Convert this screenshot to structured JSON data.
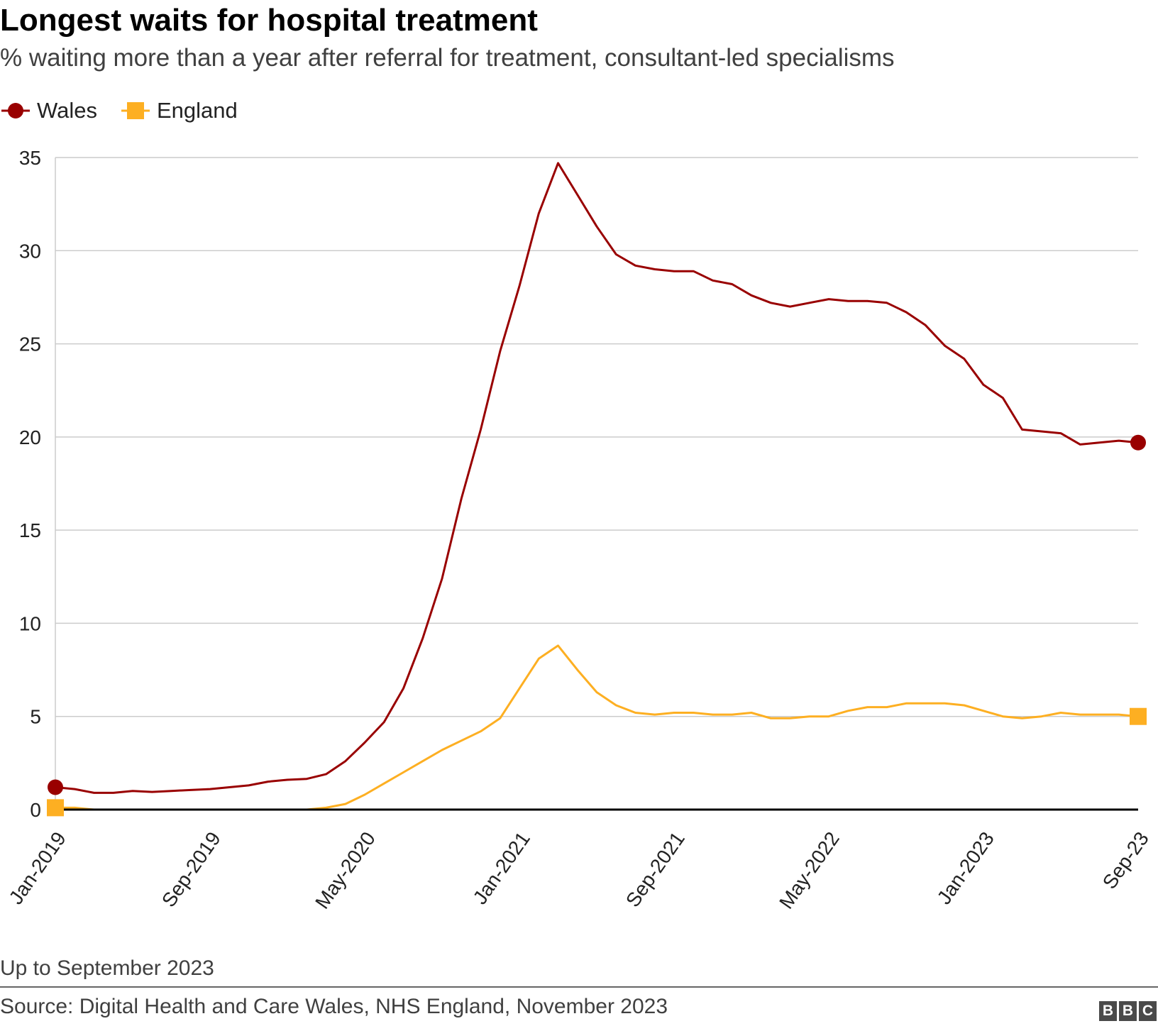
{
  "header": {
    "title": "Longest waits for hospital treatment",
    "subtitle": "% waiting more than a year after referral for treatment, consultant-led specialisms"
  },
  "legend": [
    {
      "label": "Wales",
      "color": "#990000",
      "marker": "circle"
    },
    {
      "label": "England",
      "color": "#fdaf22",
      "marker": "square"
    }
  ],
  "footer": {
    "note": "Up to September 2023",
    "source": "Source: Digital Health and Care Wales, NHS England, November 2023",
    "logo_letters": [
      "B",
      "B",
      "C"
    ]
  },
  "colors": {
    "wales": "#990000",
    "england": "#fdaf22",
    "gridline": "#cccccc",
    "baseline": "#000000",
    "text": "#222222"
  },
  "chart_data": {
    "type": "line",
    "title": "Longest waits for hospital treatment",
    "subtitle": "% waiting more than a year after referral for treatment, consultant-led specialisms",
    "xlabel": "",
    "ylabel": "",
    "ylim": [
      0,
      35
    ],
    "y_ticks": [
      0,
      5,
      10,
      15,
      20,
      25,
      30,
      35
    ],
    "grid": true,
    "legend_position": "top-left",
    "x_tick_labels": [
      {
        "label": "Jan-2019",
        "index": 0
      },
      {
        "label": "Sep-2019",
        "index": 8
      },
      {
        "label": "May-2020",
        "index": 16
      },
      {
        "label": "Jan-2021",
        "index": 24
      },
      {
        "label": "Sep-2021",
        "index": 32
      },
      {
        "label": "May-2022",
        "index": 40
      },
      {
        "label": "Jan-2023",
        "index": 48
      },
      {
        "label": "Sep-23",
        "index": 56
      }
    ],
    "x": [
      "Jan-2019",
      "Feb-2019",
      "Mar-2019",
      "Apr-2019",
      "May-2019",
      "Jun-2019",
      "Jul-2019",
      "Aug-2019",
      "Sep-2019",
      "Oct-2019",
      "Nov-2019",
      "Dec-2019",
      "Jan-2020",
      "Feb-2020",
      "Mar-2020",
      "Apr-2020",
      "May-2020",
      "Jun-2020",
      "Jul-2020",
      "Aug-2020",
      "Sep-2020",
      "Oct-2020",
      "Nov-2020",
      "Dec-2020",
      "Jan-2021",
      "Feb-2021",
      "Mar-2021",
      "Apr-2021",
      "May-2021",
      "Jun-2021",
      "Jul-2021",
      "Aug-2021",
      "Sep-2021",
      "Oct-2021",
      "Nov-2021",
      "Dec-2021",
      "Jan-2022",
      "Feb-2022",
      "Mar-2022",
      "Apr-2022",
      "May-2022",
      "Jun-2022",
      "Jul-2022",
      "Aug-2022",
      "Sep-2022",
      "Oct-2022",
      "Nov-2022",
      "Dec-2022",
      "Jan-2023",
      "Feb-2023",
      "Mar-2023",
      "Apr-2023",
      "May-2023",
      "Jun-2023",
      "Jul-2023",
      "Aug-2023",
      "Sep-2023"
    ],
    "series": [
      {
        "name": "Wales",
        "end_markers": "circle",
        "values": [
          1.2,
          1.1,
          0.9,
          0.9,
          1.0,
          0.95,
          1.0,
          1.05,
          1.1,
          1.2,
          1.3,
          1.5,
          1.6,
          1.65,
          1.9,
          2.6,
          3.6,
          4.7,
          6.5,
          9.2,
          12.4,
          16.7,
          20.4,
          24.6,
          28.1,
          32.0,
          34.7,
          33.0,
          31.3,
          29.8,
          29.2,
          29.0,
          28.9,
          28.9,
          28.4,
          28.2,
          27.6,
          27.2,
          27.0,
          27.2,
          27.4,
          27.3,
          27.3,
          27.2,
          26.7,
          26.0,
          24.9,
          24.2,
          22.8,
          22.1,
          20.4,
          20.3,
          20.2,
          19.6,
          19.7,
          19.8,
          19.7
        ]
      },
      {
        "name": "England",
        "end_markers": "square",
        "values": [
          0.1,
          0.1,
          0,
          0,
          0,
          0,
          0,
          0,
          0,
          0,
          0,
          0,
          0,
          0,
          0.1,
          0.3,
          0.8,
          1.4,
          2.0,
          2.6,
          3.2,
          3.7,
          4.2,
          4.9,
          6.5,
          8.1,
          8.8,
          7.5,
          6.3,
          5.6,
          5.2,
          5.1,
          5.2,
          5.2,
          5.1,
          5.1,
          5.2,
          4.9,
          4.9,
          5.0,
          5.0,
          5.3,
          5.5,
          5.5,
          5.7,
          5.7,
          5.7,
          5.6,
          5.3,
          5.0,
          4.9,
          5.0,
          5.2,
          5.1,
          5.1,
          5.1,
          5.0
        ]
      }
    ]
  }
}
